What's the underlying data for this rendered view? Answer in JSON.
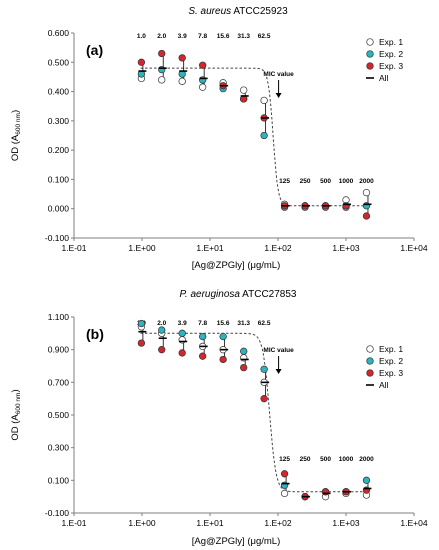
{
  "colors": {
    "exp1": "#ffffff",
    "exp2": "#2bb5c1",
    "exp3": "#d3262e",
    "fit": "#444444",
    "axis": "#7f7f7f"
  },
  "chart_data": [
    {
      "type": "scatter",
      "panel_label": "(a)",
      "title_italic": "S. aureus",
      "title_rest": " ATCC25923",
      "xlabel": "[Ag@ZPGly] (μg/mL)",
      "ylabel": "OD (A",
      "ylabel_sub": "600 nm",
      "ylabel_end": ")",
      "xscale": "log",
      "xlim": [
        0.1,
        10000
      ],
      "ylim": [
        -0.1,
        0.6
      ],
      "yticks": [
        -0.1,
        0.0,
        0.1,
        0.2,
        0.3,
        0.4,
        0.5,
        0.6
      ],
      "ytick_labels": [
        "-0.100",
        "0.000",
        "0.100",
        "0.200",
        "0.300",
        "0.400",
        "0.500",
        "0.600"
      ],
      "xticks": [
        0.1,
        1,
        10,
        100,
        1000,
        10000
      ],
      "xtick_labels": [
        "1.E-01",
        "1.E+00",
        "1.E+01",
        "1.E+02",
        "1.E+03",
        "1.E+04"
      ],
      "legend_position": "top-right",
      "legend": [
        "Exp. 1",
        "Exp. 2",
        "Exp. 3",
        "All"
      ],
      "mic_label": "MIC value",
      "mic_arrow_x": 125,
      "conc_labels": [
        "1.0",
        "2.0",
        "3.9",
        "7.8",
        "15.6",
        "31.3",
        "62.5",
        "125",
        "250",
        "500",
        "1000",
        "2000"
      ],
      "x": [
        0.98,
        1.95,
        3.9,
        7.8,
        15.6,
        31.3,
        62.5,
        125,
        250,
        500,
        1000,
        2000
      ],
      "series": [
        {
          "name": "Exp. 1",
          "values": [
            0.445,
            0.44,
            0.435,
            0.415,
            0.43,
            0.405,
            0.37,
            0.015,
            0.01,
            0.01,
            0.03,
            0.055
          ]
        },
        {
          "name": "Exp. 2",
          "values": [
            0.46,
            0.475,
            0.46,
            0.44,
            0.41,
            0.375,
            0.25,
            0.005,
            0.005,
            0.005,
            0.005,
            0.01
          ]
        },
        {
          "name": "Exp. 3",
          "values": [
            0.5,
            0.53,
            0.515,
            0.49,
            0.42,
            0.375,
            0.31,
            0.01,
            0.01,
            0.01,
            0.01,
            -0.025
          ]
        },
        {
          "name": "All",
          "values": [
            0.47,
            0.48,
            0.47,
            0.445,
            0.42,
            0.385,
            0.31,
            0.01,
            0.01,
            0.01,
            0.015,
            0.015
          ]
        }
      ],
      "fit": {
        "top": 0.48,
        "bottom": 0.01,
        "x50": 85,
        "hill": 12
      }
    },
    {
      "type": "scatter",
      "panel_label": "(b)",
      "title_italic": "P. aeruginosa",
      "title_rest": " ATCC27853",
      "xlabel": "[Ag@ZPGly] (μg/mL)",
      "ylabel": "OD (A",
      "ylabel_sub": "600 nm",
      "ylabel_end": ")",
      "xscale": "log",
      "xlim": [
        0.1,
        10000
      ],
      "ylim": [
        -0.1,
        1.1
      ],
      "yticks": [
        -0.1,
        0.1,
        0.3,
        0.5,
        0.7,
        0.9,
        1.1
      ],
      "ytick_labels": [
        "-0.100",
        "0.100",
        "0.300",
        "0.500",
        "0.700",
        "0.900",
        "1.100"
      ],
      "xticks": [
        0.1,
        1,
        10,
        100,
        1000,
        10000
      ],
      "xtick_labels": [
        "1.E-01",
        "1.E+00",
        "1.E+01",
        "1.E+02",
        "1.E+03",
        "1.E+04"
      ],
      "legend_position": "right",
      "legend": [
        "Exp. 1",
        "Exp. 2",
        "Exp. 3",
        "All"
      ],
      "mic_label": "MIC value",
      "mic_arrow_x": 125,
      "conc_labels": [
        "1.0",
        "2.0",
        "3.9",
        "7.8",
        "15.6",
        "31.3",
        "62.5",
        "125",
        "250",
        "500",
        "1000",
        "2000"
      ],
      "x": [
        0.98,
        1.95,
        3.9,
        7.8,
        15.6,
        31.3,
        62.5,
        125,
        250,
        500,
        1000,
        2000
      ],
      "series": [
        {
          "name": "Exp. 1",
          "values": [
            1.04,
            1.0,
            0.96,
            0.92,
            0.9,
            0.85,
            0.7,
            0.02,
            0.0,
            0.0,
            0.02,
            0.01
          ]
        },
        {
          "name": "Exp. 2",
          "values": [
            1.06,
            1.02,
            1.0,
            0.98,
            0.98,
            0.89,
            0.78,
            0.07,
            0.0,
            0.03,
            0.03,
            0.1
          ]
        },
        {
          "name": "Exp. 3",
          "values": [
            0.94,
            0.9,
            0.88,
            0.86,
            0.84,
            0.79,
            0.6,
            0.14,
            0.0,
            0.03,
            0.03,
            0.04
          ]
        },
        {
          "name": "All",
          "values": [
            1.01,
            0.97,
            0.95,
            0.92,
            0.9,
            0.84,
            0.7,
            0.08,
            0.0,
            0.02,
            0.03,
            0.05
          ]
        }
      ],
      "fit": {
        "top": 1.0,
        "bottom": 0.03,
        "x50": 75,
        "hill": 9
      }
    }
  ]
}
